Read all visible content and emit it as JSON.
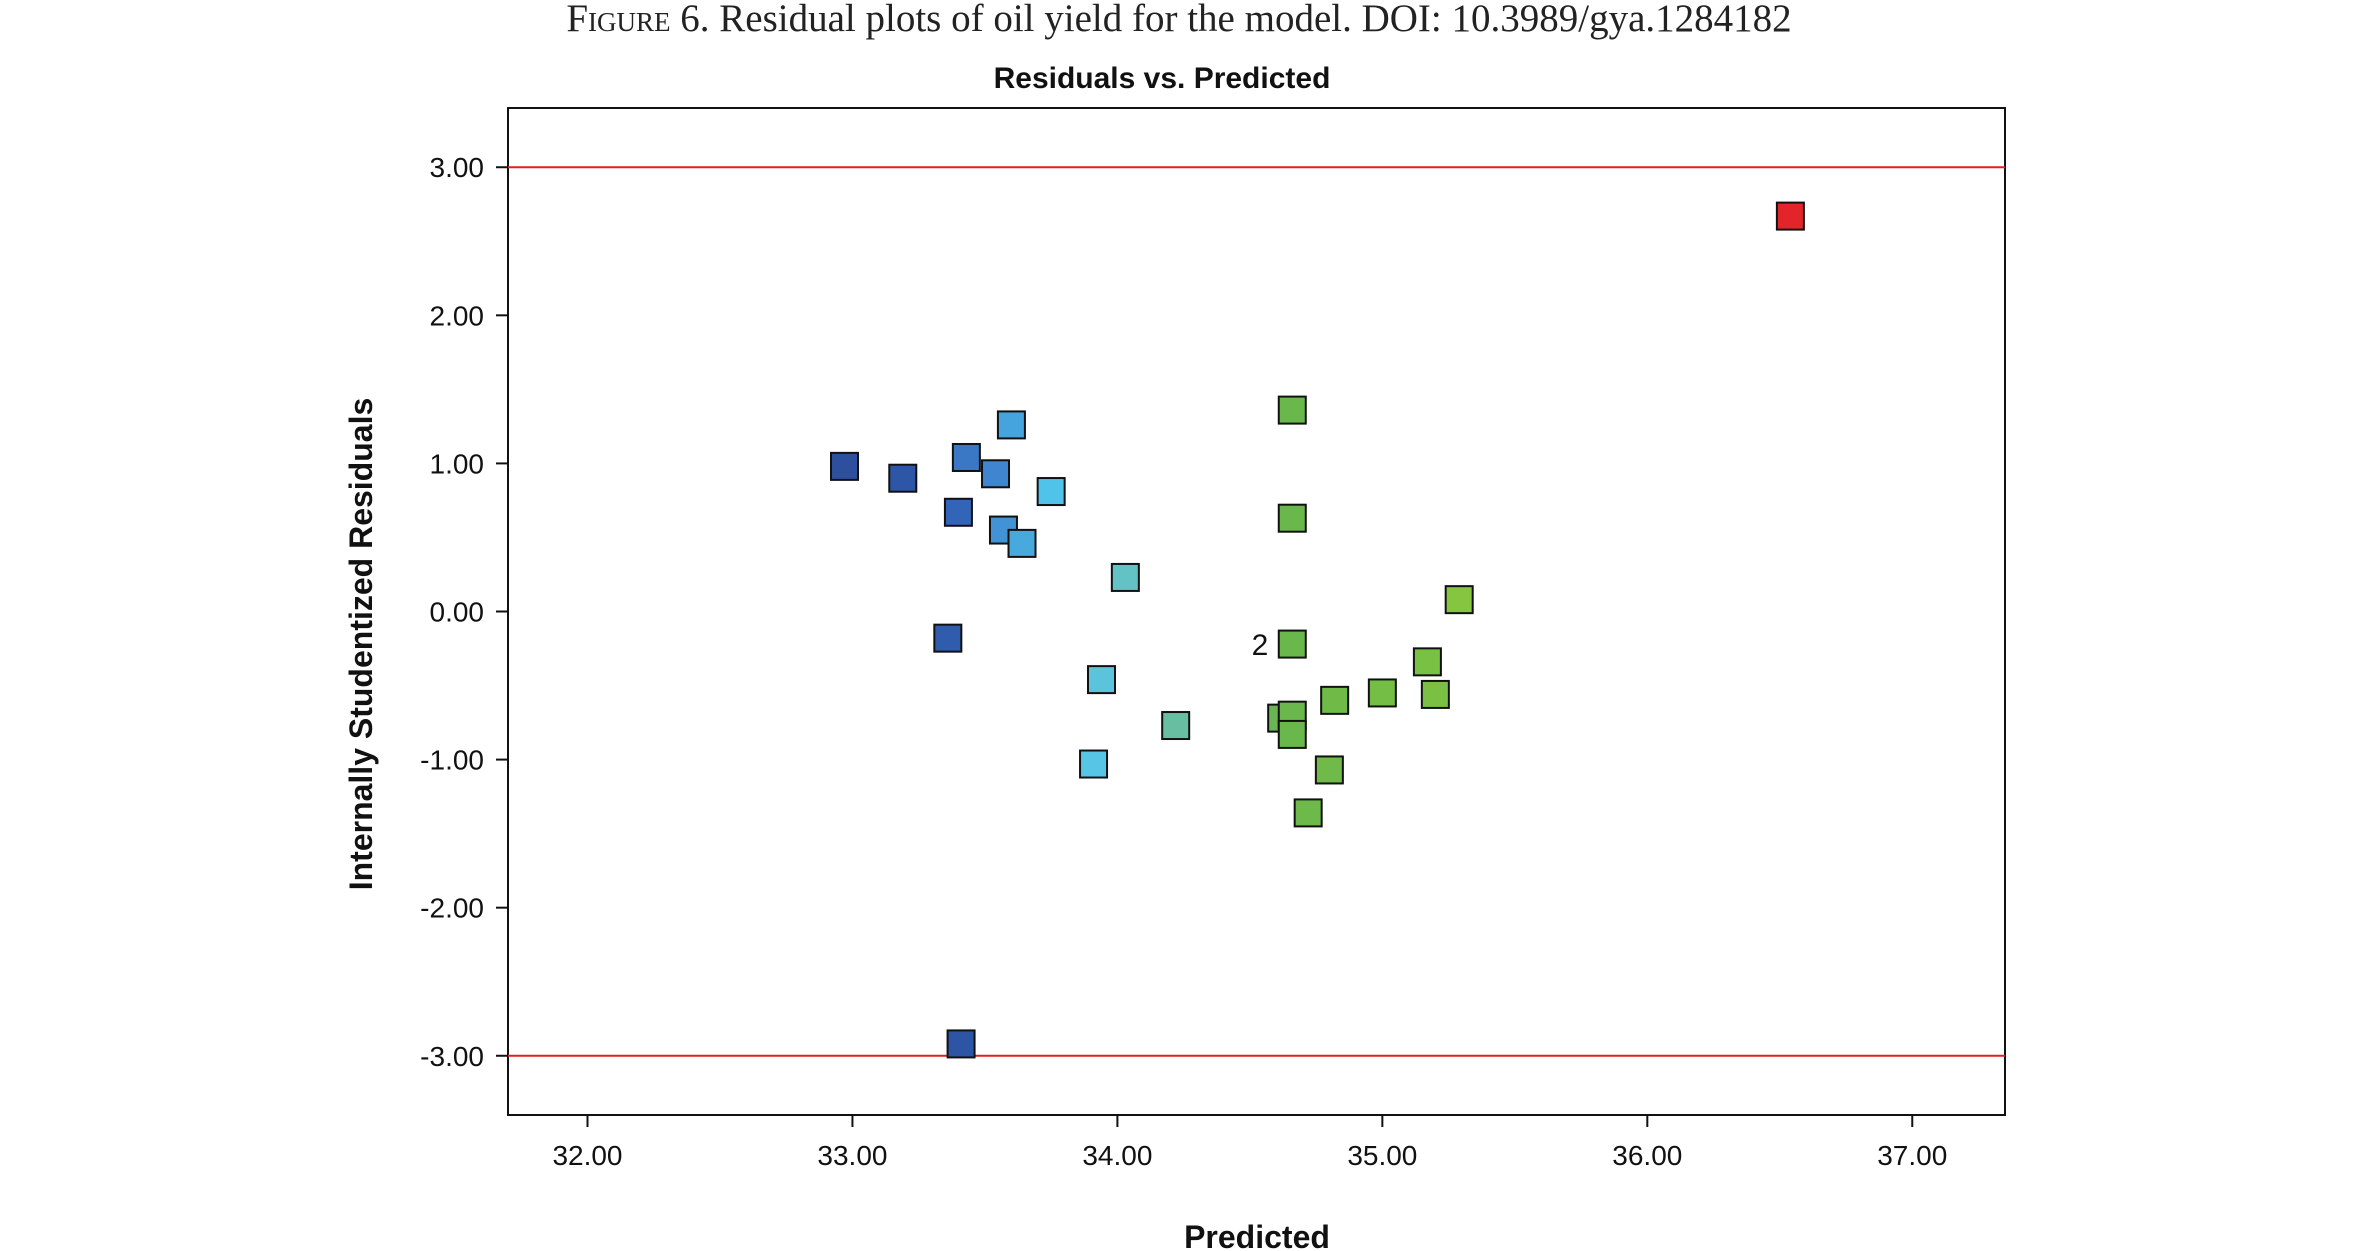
{
  "figure_caption": {
    "prefix": "Figure 6.",
    "text": "Residual plots of oil yield for the model. DOI: 10.3989/gya.1284182"
  },
  "chart_data": {
    "type": "scatter",
    "title": "Residuals vs. Predicted",
    "xlabel": "Predicted",
    "ylabel": "Internally Studentized Residuals",
    "xlim": [
      31.7,
      37.35
    ],
    "ylim": [
      -3.4,
      3.4
    ],
    "x_ticks": [
      32.0,
      33.0,
      34.0,
      35.0,
      36.0,
      37.0
    ],
    "x_tick_labels": [
      "32.00",
      "33.00",
      "34.00",
      "35.00",
      "36.00",
      "37.00"
    ],
    "y_ticks": [
      3.0,
      2.0,
      1.0,
      0.0,
      -1.0,
      -2.0,
      -3.0
    ],
    "y_tick_labels": [
      "3.00",
      "2.00",
      "1.00",
      "0.00",
      "-1.00",
      "-2.00",
      "-3.00"
    ],
    "reference_lines": [
      3.0,
      -3.0
    ],
    "reference_line_color": "#e02020",
    "grid": false,
    "marker": "square",
    "points": [
      {
        "x": 32.97,
        "y": 0.98,
        "color": "#2e4f9e"
      },
      {
        "x": 33.19,
        "y": 0.9,
        "color": "#2e56a6"
      },
      {
        "x": 33.36,
        "y": -0.18,
        "color": "#2f5cad"
      },
      {
        "x": 33.4,
        "y": 0.67,
        "color": "#3265b7"
      },
      {
        "x": 33.41,
        "y": -2.92,
        "color": "#2e54a6"
      },
      {
        "x": 33.43,
        "y": 1.04,
        "color": "#3a78c6"
      },
      {
        "x": 33.54,
        "y": 0.93,
        "color": "#3f85cf"
      },
      {
        "x": 33.57,
        "y": 0.55,
        "color": "#4193d6"
      },
      {
        "x": 33.6,
        "y": 1.26,
        "color": "#45a3dd"
      },
      {
        "x": 33.64,
        "y": 0.46,
        "color": "#48a9df"
      },
      {
        "x": 33.75,
        "y": 0.81,
        "color": "#4fc3ea"
      },
      {
        "x": 33.91,
        "y": -1.03,
        "color": "#56c5e6"
      },
      {
        "x": 33.94,
        "y": -0.46,
        "color": "#5bc3dc"
      },
      {
        "x": 34.03,
        "y": 0.23,
        "color": "#63c2c4"
      },
      {
        "x": 34.22,
        "y": -0.77,
        "color": "#67bea1"
      },
      {
        "x": 34.62,
        "y": -0.72,
        "color": "#6ab654"
      },
      {
        "x": 34.66,
        "y": 1.36,
        "color": "#6ab84c"
      },
      {
        "x": 34.66,
        "y": 0.63,
        "color": "#6ab84c"
      },
      {
        "x": 34.66,
        "y": -0.22,
        "color": "#6ab84c"
      },
      {
        "x": 34.66,
        "y": -0.7,
        "color": "#6ab84c"
      },
      {
        "x": 34.66,
        "y": -0.83,
        "color": "#6ab84c"
      },
      {
        "x": 34.72,
        "y": -1.36,
        "color": "#6db94a"
      },
      {
        "x": 34.8,
        "y": -1.07,
        "color": "#6fba48"
      },
      {
        "x": 34.82,
        "y": -0.6,
        "color": "#70bb47"
      },
      {
        "x": 35.0,
        "y": -0.55,
        "color": "#74be45"
      },
      {
        "x": 35.17,
        "y": -0.34,
        "color": "#79c143"
      },
      {
        "x": 35.2,
        "y": -0.56,
        "color": "#7ac143"
      },
      {
        "x": 35.29,
        "y": 0.08,
        "color": "#86c540"
      },
      {
        "x": 36.54,
        "y": 2.67,
        "color": "#e3242b"
      }
    ],
    "annotations": [
      {
        "text": "2",
        "x": 34.66,
        "y": -0.22
      }
    ]
  }
}
